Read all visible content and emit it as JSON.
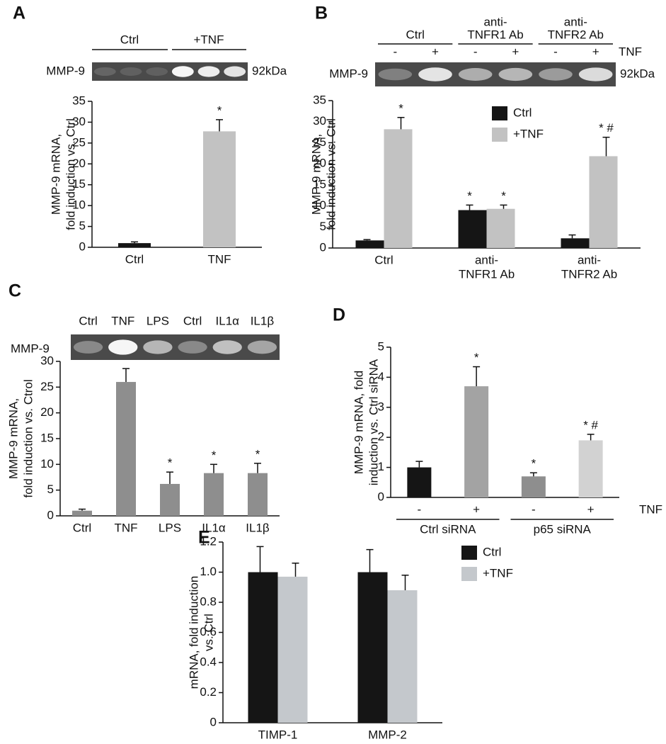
{
  "chart_data": [
    {
      "type": "bar",
      "panel": "A",
      "blot_groups": [
        "Ctrl",
        "+TNF"
      ],
      "blot_label": "MMP-9",
      "blot_size": "92kDa",
      "ylabel": [
        "MMP-9 mRNA,",
        "fold induction vs. Ctrl"
      ],
      "categories": [
        "Ctrl",
        "TNF"
      ],
      "values": [
        1,
        27.8
      ],
      "errors": [
        0.3,
        2.8
      ],
      "annotations": [
        null,
        "*"
      ],
      "colors": [
        "#151515",
        "#c2c2c2"
      ],
      "ylim": [
        0,
        35
      ],
      "yticks": [
        0,
        5,
        10,
        15,
        20,
        25,
        30,
        35
      ]
    },
    {
      "type": "bar",
      "panel": "B",
      "blot_groups": [
        [
          "Ctrl"
        ],
        [
          "anti-",
          "TNFR1 Ab"
        ],
        [
          "anti-",
          "TNFR2 Ab"
        ]
      ],
      "blot_signs": [
        "-",
        "+",
        "-",
        "+",
        "-",
        "+"
      ],
      "blot_treatment": "TNF",
      "blot_label": "MMP-9",
      "blot_size": "92kDa",
      "ylabel": [
        "MMP-9 mRNA,",
        "fold induction vs. Ctrl"
      ],
      "categories": [
        [
          "Ctrl"
        ],
        [
          "anti-",
          "TNFR1 Ab"
        ],
        [
          "anti-",
          "TNFR2 Ab"
        ]
      ],
      "series": [
        {
          "name": "Ctrl",
          "color": "#151515",
          "values": [
            1.8,
            9,
            2.3
          ],
          "errors": [
            0.2,
            1.2,
            0.8
          ],
          "annotations": [
            null,
            "*",
            null
          ]
        },
        {
          "name": "+TNF",
          "color": "#c2c2c2",
          "values": [
            28.2,
            9.3,
            21.8
          ],
          "errors": [
            2.8,
            0.9,
            4.5
          ],
          "annotations": [
            "*",
            "*",
            "* #"
          ]
        }
      ],
      "ylim": [
        0,
        35
      ],
      "yticks": [
        0,
        5,
        10,
        15,
        20,
        25,
        30,
        35
      ],
      "legend": "top-center"
    },
    {
      "type": "bar",
      "panel": "C",
      "blot_lanes": [
        "Ctrl",
        "TNF",
        "LPS",
        "Ctrl",
        "IL1α",
        "IL1β"
      ],
      "blot_label": "MMP-9",
      "ylabel": [
        "MMP-9 mRNA,",
        "fold induction vs. Ctrol"
      ],
      "categories": [
        "Ctrl",
        "TNF",
        "LPS",
        "IL1α",
        "IL1β"
      ],
      "values": [
        1,
        26,
        6.2,
        8.3,
        8.3
      ],
      "errors": [
        0.3,
        2.6,
        2.3,
        1.7,
        1.9
      ],
      "annotations": [
        null,
        "*",
        "*",
        "*",
        "*"
      ],
      "color": "#8e8e8e",
      "ylim": [
        0,
        30
      ],
      "yticks": [
        0,
        5,
        10,
        15,
        20,
        25,
        30
      ]
    },
    {
      "type": "bar",
      "panel": "D",
      "ylabel": [
        "MMP-9 mRNA, fold",
        "induction vs. Ctrl siRNA"
      ],
      "categories": [
        "-",
        "+",
        "-",
        "+"
      ],
      "groups": [
        "Ctrl siRNA",
        "p65 siRNA"
      ],
      "treatment": "TNF",
      "values": [
        1,
        3.7,
        0.7,
        1.9
      ],
      "errors": [
        0.2,
        0.65,
        0.12,
        0.2
      ],
      "annotations": [
        null,
        "*",
        "*",
        "* #"
      ],
      "colors": [
        "#151515",
        "#a3a3a3",
        "#8e8e8e",
        "#d2d2d2"
      ],
      "ylim": [
        0,
        5
      ],
      "yticks": [
        0,
        1,
        2,
        3,
        4,
        5
      ]
    },
    {
      "type": "bar",
      "panel": "E",
      "ylabel": [
        "mRNA, fold induction",
        "vs. Ctrl"
      ],
      "categories": [
        "TIMP-1",
        "MMP-2"
      ],
      "series": [
        {
          "name": "Ctrl",
          "color": "#151515",
          "values": [
            1.0,
            1.0
          ],
          "errors": [
            0.17,
            0.15
          ]
        },
        {
          "name": "+TNF",
          "color": "#c4c8cc",
          "values": [
            0.97,
            0.88
          ],
          "errors": [
            0.09,
            0.1
          ]
        }
      ],
      "ylim": [
        0,
        1.2
      ],
      "yticks": [
        0,
        0.2,
        0.4,
        0.6,
        0.8,
        {
          "value": 1,
          "label": "1.0"
        },
        1.2
      ],
      "legend": "right"
    }
  ]
}
